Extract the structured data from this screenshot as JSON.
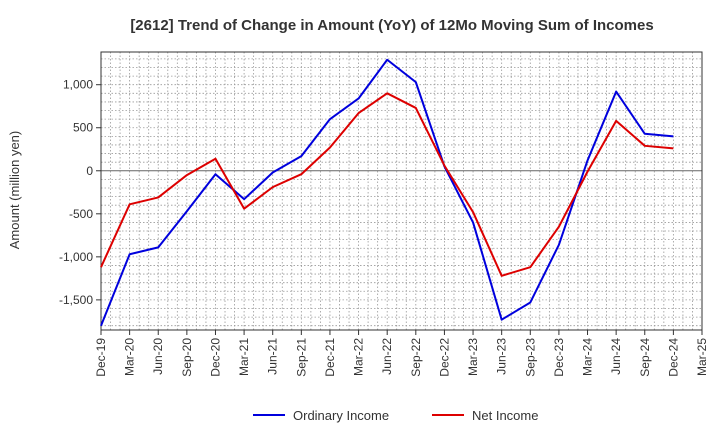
{
  "chart_data": {
    "type": "line",
    "title": "[2612]  Trend of Change in Amount (YoY) of 12Mo Moving Sum of Incomes",
    "ylabel": "Amount (million yen)",
    "xlabel": "",
    "ylim": [
      -1850,
      1380
    ],
    "yticks": [
      1000,
      500,
      0,
      -500,
      -1000,
      -1500
    ],
    "ytick_labels": [
      "1,000",
      "500",
      "0",
      "-500",
      "-1,000",
      "-1,500"
    ],
    "categories": [
      "Dec-19",
      "Mar-20",
      "Jun-20",
      "Sep-20",
      "Dec-20",
      "Mar-21",
      "Jun-21",
      "Sep-21",
      "Dec-21",
      "Mar-22",
      "Jun-22",
      "Sep-22",
      "Dec-22",
      "Mar-23",
      "Jun-23",
      "Sep-23",
      "Dec-23",
      "Mar-24",
      "Jun-24",
      "Sep-24",
      "Dec-24",
      "Mar-25"
    ],
    "grid": true,
    "legend_position": "bottom",
    "series": [
      {
        "name": "Ordinary Income",
        "color": "#0000dd",
        "values": [
          -1800,
          -970,
          -890,
          -470,
          -40,
          -330,
          -20,
          170,
          600,
          840,
          1290,
          1030,
          50,
          -600,
          -1730,
          -1530,
          -860,
          120,
          920,
          430,
          400,
          null
        ]
      },
      {
        "name": "Net Income",
        "color": "#dd0000",
        "values": [
          -1120,
          -390,
          -310,
          -50,
          140,
          -440,
          -190,
          -40,
          270,
          670,
          900,
          730,
          60,
          -480,
          -1220,
          -1120,
          -650,
          -10,
          580,
          290,
          260,
          null
        ]
      }
    ]
  }
}
